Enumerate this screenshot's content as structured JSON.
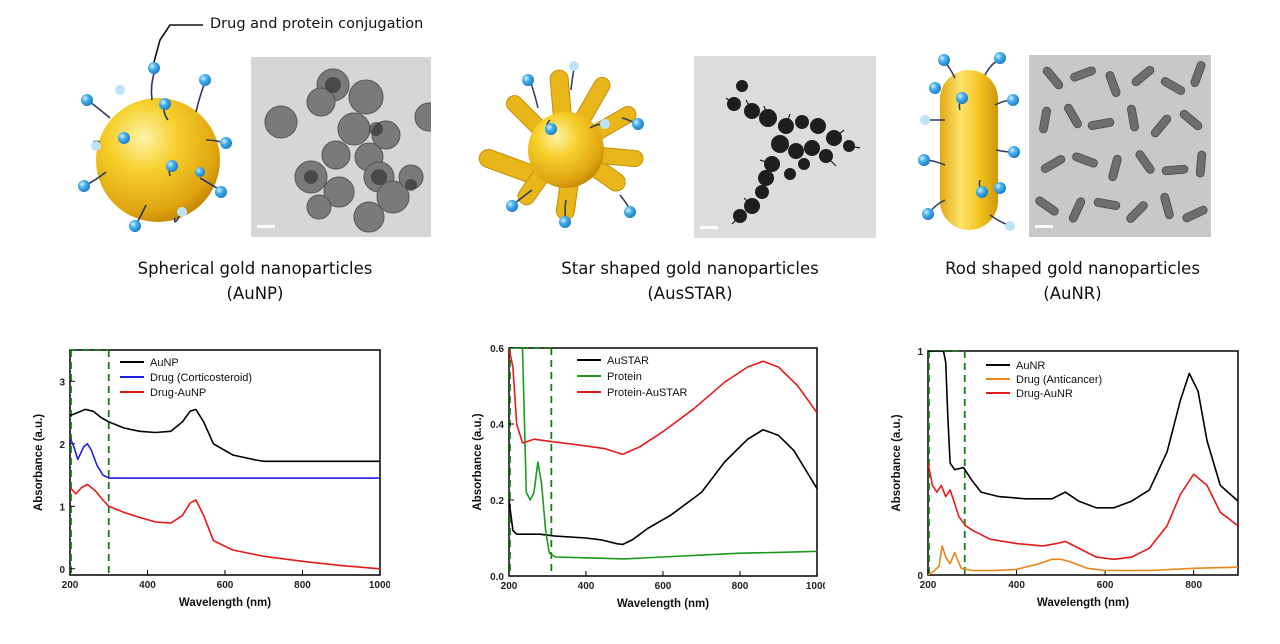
{
  "header": {
    "conjugation_label": "Drug and protein conjugation"
  },
  "particles": [
    {
      "name": "Spherical gold nanoparticles",
      "abbr": "(AuNP)"
    },
    {
      "name": "Star shaped gold nanoparticles",
      "abbr": "(AusSTAR)"
    },
    {
      "name": "Rod shaped gold nanoparticles",
      "abbr": "(AuNR)"
    }
  ],
  "colors": {
    "gold": "#f2c41a",
    "ligand_ball": "#3aa7e8",
    "ligand_ball_light": "#a7d8f3"
  },
  "chart_data": [
    {
      "type": "line",
      "xlabel": "Wavelength (nm)",
      "ylabel": "Absorbance (a.u.)",
      "xlim": [
        200,
        1000
      ],
      "ylim": [
        -0.1,
        3.5
      ],
      "xticks": [
        "200",
        "400",
        "600",
        "800",
        "1000"
      ],
      "yticks": [
        "0",
        "1",
        "2",
        "3"
      ],
      "series": [
        {
          "name": "AuNP",
          "color": "#000000",
          "x": [
            200,
            220,
            240,
            260,
            280,
            300,
            340,
            380,
            420,
            460,
            490,
            510,
            525,
            545,
            570,
            620,
            680,
            700,
            800,
            900,
            1000
          ],
          "y": [
            2.45,
            2.5,
            2.55,
            2.52,
            2.42,
            2.35,
            2.25,
            2.2,
            2.18,
            2.2,
            2.35,
            2.52,
            2.55,
            2.35,
            2.0,
            1.82,
            1.74,
            1.72,
            1.72,
            1.72,
            1.72
          ]
        },
        {
          "name": "Drug (Corticosteroid)",
          "color": "#1f1fe0",
          "x": [
            200,
            210,
            220,
            235,
            245,
            255,
            270,
            285,
            300,
            400,
            600,
            800,
            1000
          ],
          "y": [
            2.1,
            1.95,
            1.75,
            1.95,
            2.0,
            1.9,
            1.65,
            1.5,
            1.45,
            1.45,
            1.45,
            1.45,
            1.45
          ]
        },
        {
          "name": "Drug-AuNP",
          "color": "#e51a1a",
          "x": [
            200,
            215,
            230,
            245,
            265,
            285,
            300,
            340,
            380,
            420,
            460,
            490,
            510,
            525,
            545,
            570,
            620,
            700,
            800,
            900,
            1000
          ],
          "y": [
            1.3,
            1.2,
            1.3,
            1.35,
            1.25,
            1.1,
            1.0,
            0.9,
            0.82,
            0.75,
            0.73,
            0.85,
            1.05,
            1.1,
            0.85,
            0.45,
            0.3,
            0.2,
            0.12,
            0.05,
            0.0
          ]
        }
      ]
    },
    {
      "type": "line",
      "xlabel": "Wavelength (nm)",
      "ylabel": "Absorbance (a.u.)",
      "xlim": [
        200,
        1000
      ],
      "ylim": [
        0,
        0.6
      ],
      "xticks": [
        "200",
        "400",
        "600",
        "800",
        "1000"
      ],
      "yticks": [
        "0.0",
        "0.2",
        "0.4",
        "0.6"
      ],
      "series": [
        {
          "name": "AuSTAR",
          "color": "#000000",
          "x": [
            200,
            210,
            220,
            240,
            280,
            320,
            400,
            440,
            480,
            495,
            520,
            560,
            620,
            700,
            760,
            820,
            860,
            900,
            940,
            1000
          ],
          "y": [
            0.2,
            0.12,
            0.11,
            0.11,
            0.11,
            0.105,
            0.1,
            0.095,
            0.085,
            0.083,
            0.095,
            0.125,
            0.16,
            0.22,
            0.3,
            0.36,
            0.385,
            0.37,
            0.33,
            0.23
          ]
        },
        {
          "name": "Protein",
          "color": "#1a9a1a",
          "x": [
            200,
            225,
            235,
            245,
            255,
            265,
            275,
            285,
            295,
            305,
            320,
            400,
            500,
            600,
            700,
            800,
            900,
            1000
          ],
          "y": [
            0.6,
            0.6,
            0.6,
            0.22,
            0.2,
            0.22,
            0.3,
            0.24,
            0.12,
            0.06,
            0.05,
            0.048,
            0.045,
            0.05,
            0.055,
            0.06,
            0.062,
            0.065
          ]
        },
        {
          "name": "Protein-AuSTAR",
          "color": "#e51a1a",
          "x": [
            200,
            210,
            220,
            235,
            250,
            265,
            300,
            380,
            450,
            495,
            540,
            600,
            680,
            760,
            820,
            860,
            900,
            950,
            1000
          ],
          "y": [
            0.6,
            0.55,
            0.4,
            0.35,
            0.355,
            0.36,
            0.355,
            0.345,
            0.335,
            0.32,
            0.34,
            0.38,
            0.44,
            0.51,
            0.55,
            0.565,
            0.55,
            0.5,
            0.43
          ]
        }
      ]
    },
    {
      "type": "line",
      "xlabel": "Wavelength (nm)",
      "ylabel": "Absorbance (a.u.)",
      "xlim": [
        200,
        900
      ],
      "ylim": [
        0,
        1
      ],
      "xticks": [
        "200",
        "400",
        "600",
        "800"
      ],
      "yticks": [
        "0",
        "1"
      ],
      "series": [
        {
          "name": "AuNR",
          "color": "#000000",
          "x": [
            200,
            235,
            240,
            245,
            250,
            260,
            280,
            300,
            320,
            360,
            420,
            480,
            510,
            540,
            580,
            620,
            660,
            700,
            740,
            770,
            790,
            810,
            830,
            860,
            900
          ],
          "y": [
            1.0,
            1.0,
            0.95,
            0.7,
            0.5,
            0.47,
            0.48,
            0.42,
            0.37,
            0.35,
            0.34,
            0.34,
            0.37,
            0.33,
            0.3,
            0.3,
            0.33,
            0.38,
            0.55,
            0.78,
            0.9,
            0.82,
            0.6,
            0.4,
            0.33
          ]
        },
        {
          "name": "Drug (Anticancer)",
          "color": "#e8851a",
          "x": [
            200,
            215,
            225,
            232,
            240,
            250,
            260,
            275,
            300,
            350,
            400,
            450,
            480,
            500,
            520,
            560,
            600,
            700,
            800,
            900
          ],
          "y": [
            0.0,
            0.02,
            0.04,
            0.13,
            0.08,
            0.05,
            0.1,
            0.03,
            0.02,
            0.02,
            0.025,
            0.05,
            0.07,
            0.07,
            0.06,
            0.03,
            0.02,
            0.02,
            0.03,
            0.035
          ]
        },
        {
          "name": "Drug-AuNR",
          "color": "#e51a1a",
          "x": [
            200,
            210,
            220,
            230,
            240,
            250,
            260,
            270,
            285,
            300,
            340,
            400,
            460,
            490,
            510,
            540,
            580,
            620,
            660,
            700,
            740,
            770,
            800,
            830,
            860,
            900
          ],
          "y": [
            0.5,
            0.4,
            0.37,
            0.4,
            0.35,
            0.38,
            0.32,
            0.26,
            0.22,
            0.2,
            0.16,
            0.14,
            0.13,
            0.14,
            0.15,
            0.12,
            0.08,
            0.07,
            0.08,
            0.12,
            0.22,
            0.36,
            0.45,
            0.4,
            0.28,
            0.22
          ]
        }
      ]
    }
  ]
}
